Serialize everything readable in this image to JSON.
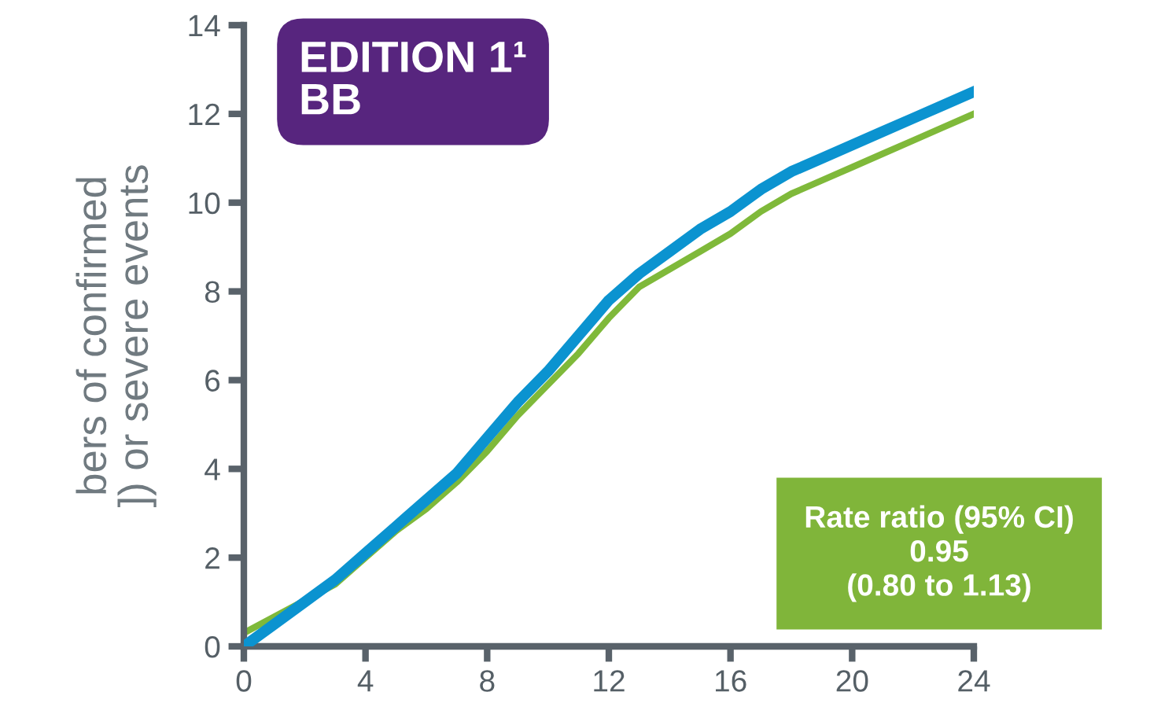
{
  "chart_data": {
    "type": "line",
    "ylabel": "bers of confirmed\n]) or severe events",
    "annotations": [
      "EDITION 1¹\nBB",
      "Rate ratio (95% CI)\n0.95\n(0.80 to 1.13)"
    ],
    "x": [
      0,
      1,
      2,
      3,
      4,
      5,
      6,
      7,
      8,
      9,
      10,
      11,
      12,
      13,
      14,
      15,
      16,
      17,
      18,
      19,
      20,
      21,
      22,
      23,
      24
    ],
    "series": [
      {
        "color": "#7fb93a",
        "x": [
          0,
          3,
          4,
          5,
          6,
          7,
          8,
          9,
          10,
          11,
          12,
          13,
          14,
          15,
          16,
          17,
          18,
          19,
          20,
          21,
          22,
          23,
          24
        ],
        "values": [
          0.3,
          1.4,
          2.0,
          2.6,
          3.1,
          3.7,
          4.4,
          5.2,
          5.9,
          6.6,
          7.4,
          8.1,
          8.5,
          8.9,
          9.3,
          9.8,
          10.2,
          10.5,
          10.8,
          11.1,
          11.4,
          11.7,
          12.0
        ]
      },
      {
        "color": "#0b93d0",
        "values": [
          0.0,
          0.5,
          1.0,
          1.5,
          2.1,
          2.7,
          3.3,
          3.9,
          4.7,
          5.5,
          6.2,
          7.0,
          7.8,
          8.4,
          8.9,
          9.4,
          9.8,
          10.3,
          10.7,
          11.0,
          11.3,
          11.6,
          11.9,
          12.2,
          12.5
        ]
      }
    ],
    "xlim": [
      0,
      24
    ],
    "xticks": [
      0,
      4,
      8,
      12,
      16,
      20,
      24
    ],
    "ylim": [
      0,
      14
    ],
    "yticks": [
      0,
      2,
      4,
      6,
      8,
      10,
      12,
      14
    ],
    "grid": false,
    "legend": false,
    "marker": "none",
    "line_style": "solid"
  }
}
